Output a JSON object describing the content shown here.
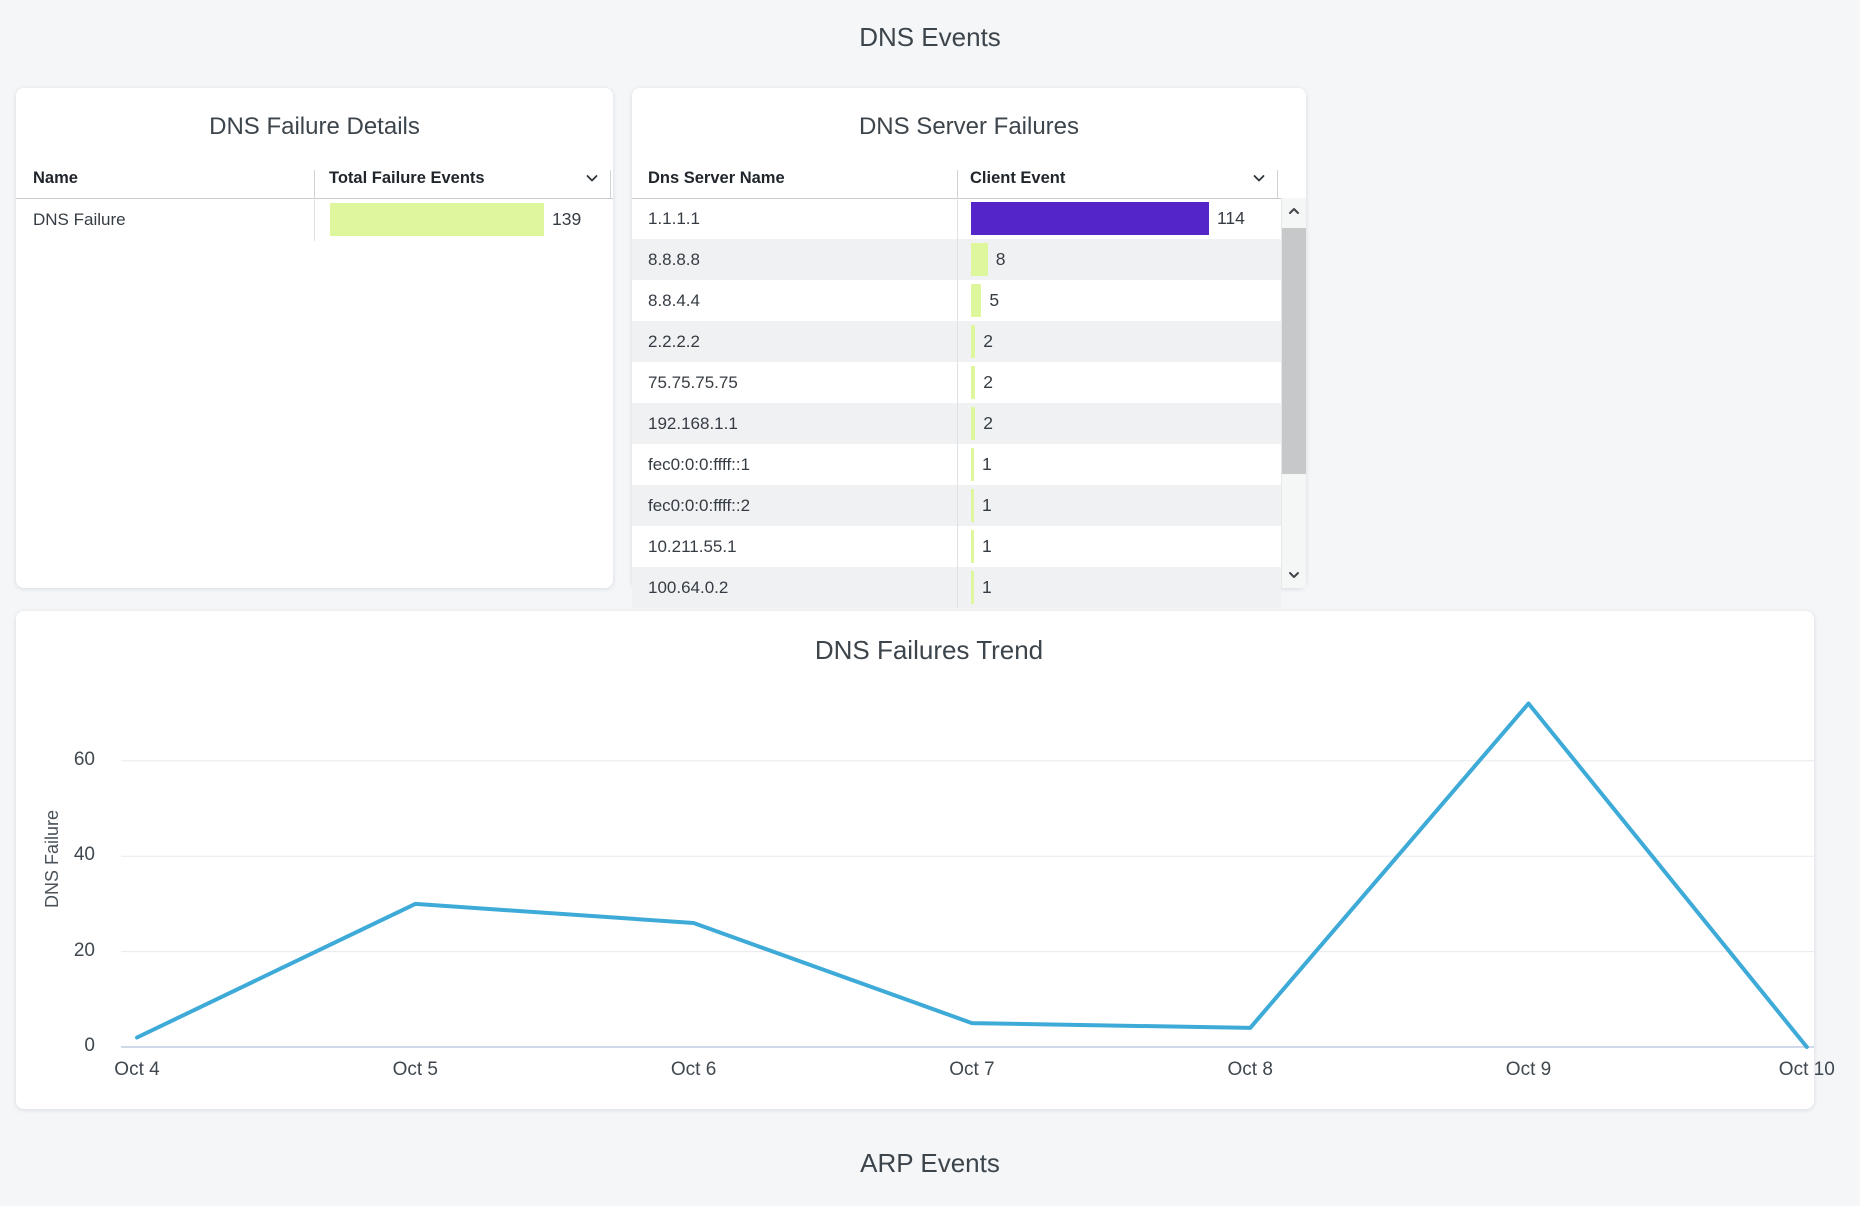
{
  "page": {
    "dns_section_title": "DNS Events",
    "arp_section_title": "ARP Events",
    "background": "#f4f6f8"
  },
  "icons": {
    "sort": "chevron-down",
    "scroll_up": "chevron-up",
    "scroll_down": "chevron-down"
  },
  "failure_details": {
    "title": "DNS Failure Details",
    "columns": [
      "Name",
      "Total Failure Events"
    ],
    "rows": [
      {
        "name": "DNS Failure",
        "value": 139,
        "color": "#def69c"
      }
    ]
  },
  "server_failures": {
    "title": "DNS Server Failures",
    "columns": [
      "Dns Server Name",
      "Client Event"
    ],
    "rows": [
      {
        "name": "1.1.1.1",
        "value": 114,
        "color": "#5426ca"
      },
      {
        "name": "8.8.8.8",
        "value": 8,
        "color": "#def69c"
      },
      {
        "name": "8.8.4.4",
        "value": 5,
        "color": "#def69c"
      },
      {
        "name": "2.2.2.2",
        "value": 2,
        "color": "#def69c"
      },
      {
        "name": "75.75.75.75",
        "value": 2,
        "color": "#def69c"
      },
      {
        "name": "192.168.1.1",
        "value": 2,
        "color": "#def69c"
      },
      {
        "name": "fec0:0:0:ffff::1",
        "value": 1,
        "color": "#def69c"
      },
      {
        "name": "fec0:0:0:ffff::2",
        "value": 1,
        "color": "#def69c"
      },
      {
        "name": "10.211.55.1",
        "value": 1,
        "color": "#def69c"
      },
      {
        "name": "100.64.0.2",
        "value": 1,
        "color": "#def69c"
      }
    ]
  },
  "chart_data": {
    "type": "line",
    "title": "DNS Failures Trend",
    "xlabel": "",
    "ylabel": "DNS Failure",
    "x": [
      "Oct 4",
      "Oct 5",
      "Oct 6",
      "Oct 7",
      "Oct 8",
      "Oct 9",
      "Oct 10"
    ],
    "values": [
      2,
      30,
      26,
      5,
      4,
      72,
      0
    ],
    "yticks": [
      0,
      20,
      40,
      60
    ],
    "ylim": [
      0,
      80
    ],
    "grid": "horizontal",
    "legend": "none",
    "line_color": "#3eaad8"
  }
}
